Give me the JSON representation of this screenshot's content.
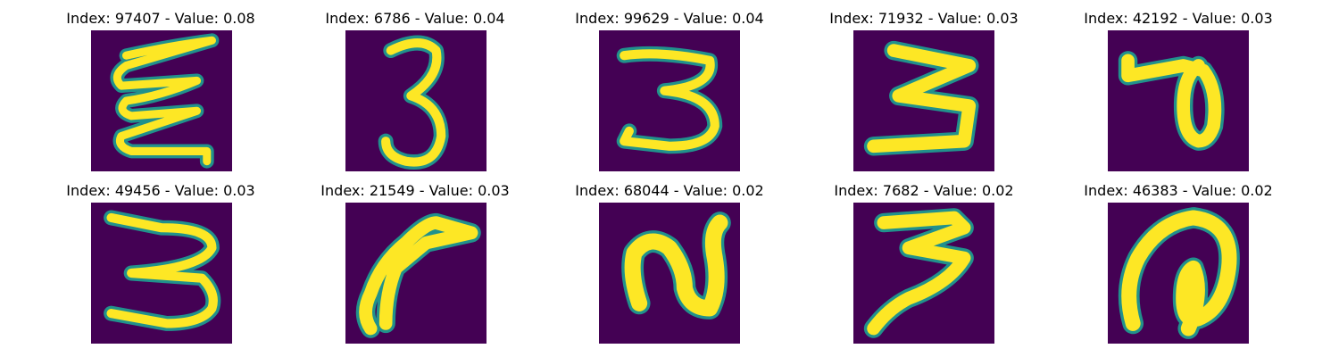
{
  "figure": {
    "colors": {
      "background": "#440154",
      "stroke": "#fde725",
      "edge": "#21918c"
    },
    "rows": 2,
    "columns": 5
  },
  "chart_data": [
    {
      "type": "heatmap",
      "title": "Index: 97407 - Value: 0.08",
      "index": 97407,
      "value": 0.08,
      "glyph": "3-zigzag",
      "rank": 1
    },
    {
      "type": "heatmap",
      "title": "Index: 6786 - Value: 0.04",
      "index": 6786,
      "value": 0.04,
      "glyph": "3",
      "rank": 2
    },
    {
      "type": "heatmap",
      "title": "Index: 99629 - Value: 0.04",
      "index": 99629,
      "value": 0.04,
      "glyph": "3",
      "rank": 3
    },
    {
      "type": "heatmap",
      "title": "Index: 71932 - Value: 0.03",
      "index": 71932,
      "value": 0.03,
      "glyph": "3-angular",
      "rank": 4
    },
    {
      "type": "heatmap",
      "title": "Index: 42192 - Value: 0.03",
      "index": 42192,
      "value": 0.03,
      "glyph": "loop-p",
      "rank": 5
    },
    {
      "type": "heatmap",
      "title": "Index: 49456 - Value: 0.03",
      "index": 49456,
      "value": 0.03,
      "glyph": "3-wide",
      "rank": 6
    },
    {
      "type": "heatmap",
      "title": "Index: 21549 - Value: 0.03",
      "index": 21549,
      "value": 0.03,
      "glyph": "hook",
      "rank": 7
    },
    {
      "type": "heatmap",
      "title": "Index: 68044 - Value: 0.02",
      "index": 68044,
      "value": 0.02,
      "glyph": "2-curvy",
      "rank": 8
    },
    {
      "type": "heatmap",
      "title": "Index: 7682 - Value: 0.02",
      "index": 7682,
      "value": 0.02,
      "glyph": "3-zigzag-bold",
      "rank": 9
    },
    {
      "type": "heatmap",
      "title": "Index: 46383 - Value: 0.02",
      "index": 46383,
      "value": 0.02,
      "glyph": "spiral",
      "rank": 10
    }
  ]
}
